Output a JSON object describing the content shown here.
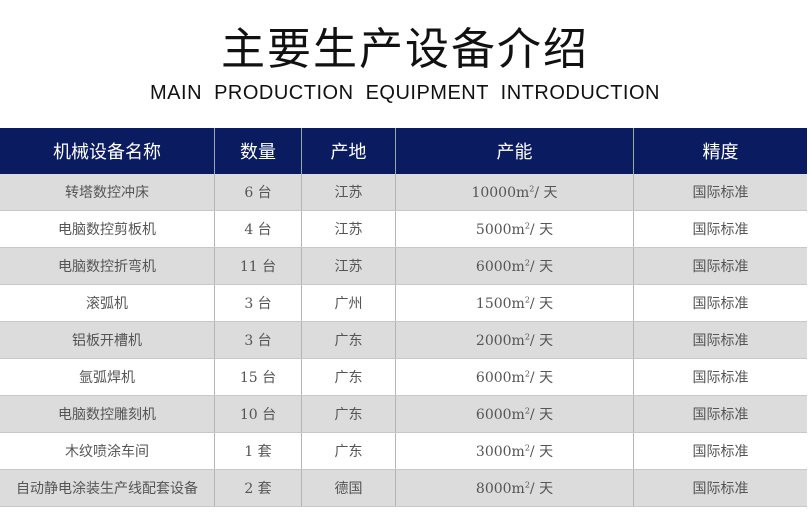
{
  "title": "主要生产设备介绍",
  "subtitle": "MAIN PRODUCTION EQUIPMENT INTRODUCTION",
  "colors": {
    "header_bg": "#0b1b60",
    "row_gray": "#dcdcdc",
    "row_white": "#ffffff"
  },
  "table": {
    "headers": [
      "机械设备名称",
      "数量",
      "产地",
      "产能",
      "精度"
    ],
    "rows": [
      {
        "name": "转塔数控冲床",
        "qty": "6 台",
        "origin": "江苏",
        "cap": "10000",
        "unit": "m",
        "sup": "2",
        "per": "/ 天",
        "precision": "国际标准"
      },
      {
        "name": "电脑数控剪板机",
        "qty": "4 台",
        "origin": "江苏",
        "cap": "5000",
        "unit": "m",
        "sup": "2",
        "per": "/ 天",
        "precision": "国际标准"
      },
      {
        "name": "电脑数控折弯机",
        "qty": "11 台",
        "origin": "江苏",
        "cap": "6000",
        "unit": "m",
        "sup": "2",
        "per": "/ 天",
        "precision": "国际标准"
      },
      {
        "name": "滚弧机",
        "qty": "3 台",
        "origin": "广州",
        "cap": "1500",
        "unit": "m",
        "sup": "2",
        "per": "/ 天",
        "precision": "国际标准"
      },
      {
        "name": "铝板开槽机",
        "qty": "3 台",
        "origin": "广东",
        "cap": "2000",
        "unit": "m",
        "sup": "2",
        "per": "/ 天",
        "precision": "国际标准"
      },
      {
        "name": "氩弧焊机",
        "qty": "15 台",
        "origin": "广东",
        "cap": "6000",
        "unit": "m",
        "sup": "2",
        "per": "/ 天",
        "precision": "国际标准"
      },
      {
        "name": "电脑数控雕刻机",
        "qty": "10 台",
        "origin": "广东",
        "cap": "6000",
        "unit": "m",
        "sup": "2",
        "per": "/ 天",
        "precision": "国际标准"
      },
      {
        "name": "木纹喷涂车间",
        "qty": "1 套",
        "origin": "广东",
        "cap": "3000",
        "unit": "m",
        "sup": "2",
        "per": "/ 天",
        "precision": "国际标准"
      },
      {
        "name": "自动静电涂装生产线配套设备",
        "qty": "2 套",
        "origin": "德国",
        "cap": "8000",
        "unit": "m",
        "sup": "2",
        "per": "/ 天",
        "precision": "国际标准"
      }
    ]
  }
}
